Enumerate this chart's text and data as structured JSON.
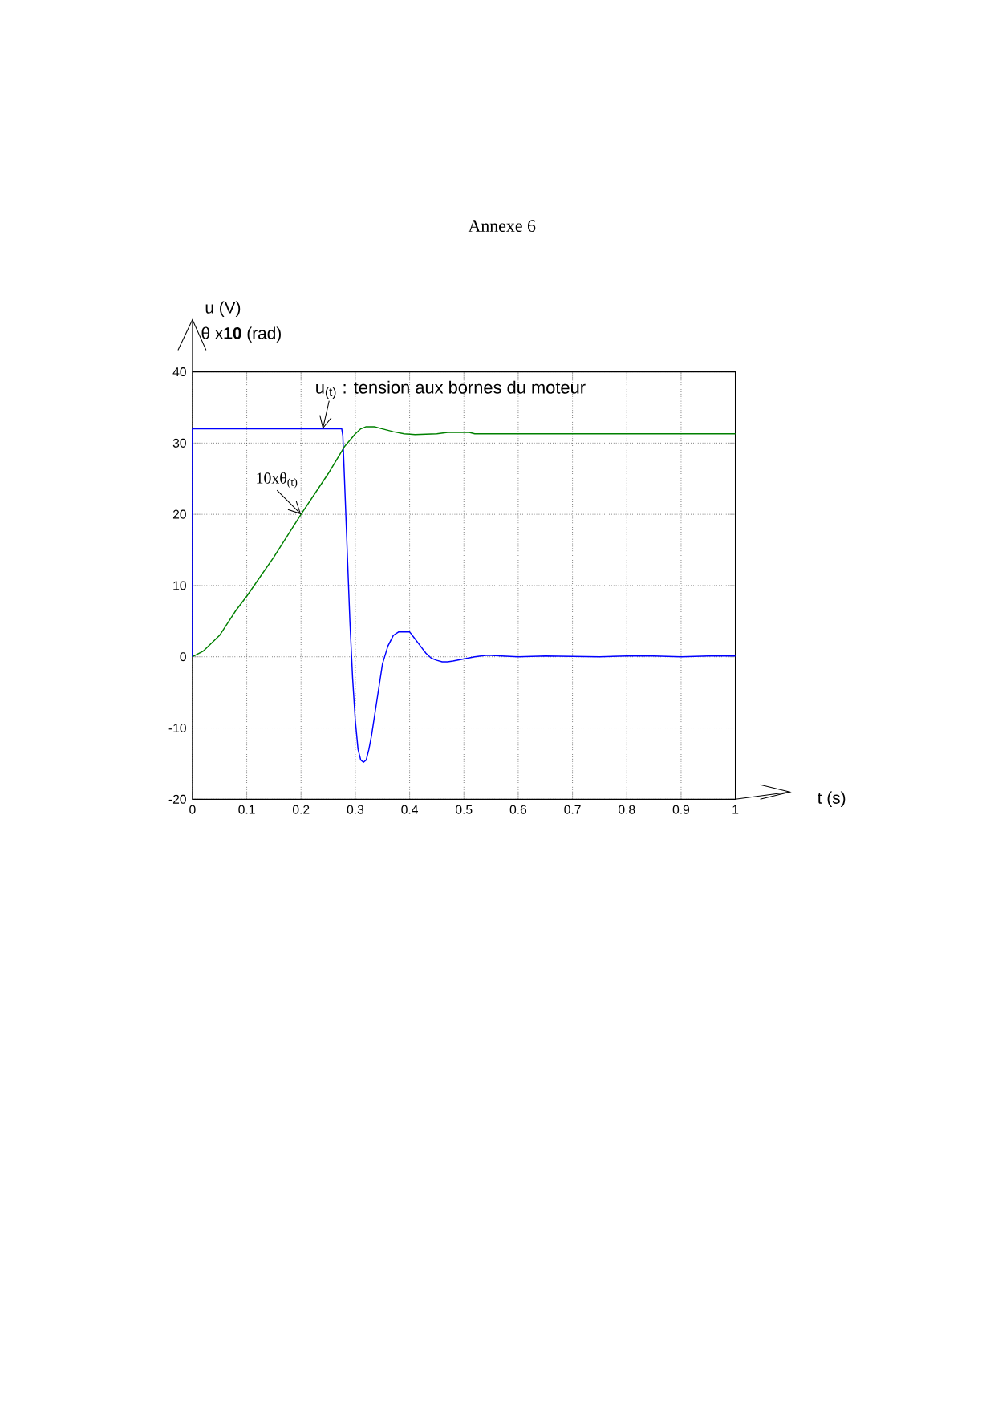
{
  "chart_data": {
    "type": "line",
    "title": "Annexe 6",
    "xlabel": "t (s)",
    "ylabel": "u (V)",
    "xlim": [
      0,
      1
    ],
    "ylim": [
      -20,
      40
    ],
    "xticks": [
      0,
      0.1,
      0.2,
      0.3,
      0.4,
      0.5,
      0.6,
      0.7,
      0.8,
      0.9,
      1
    ],
    "yticks": [
      -20,
      -10,
      0,
      10,
      20,
      30,
      40
    ],
    "grid": true,
    "marker": "none",
    "line_style": "solid",
    "series": [
      {
        "color": "#0000ff",
        "x": [
          0,
          0,
          0.275,
          0.277,
          0.28,
          0.285,
          0.29,
          0.295,
          0.3,
          0.305,
          0.31,
          0.315,
          0.32,
          0.325,
          0.33,
          0.34,
          0.35,
          0.36,
          0.37,
          0.38,
          0.39,
          0.4,
          0.41,
          0.42,
          0.43,
          0.44,
          0.45,
          0.46,
          0.47,
          0.48,
          0.5,
          0.52,
          0.54,
          0.55,
          0.57,
          0.6,
          0.65,
          0.75,
          0.8,
          0.85,
          0.9,
          0.95,
          1
        ],
        "values": [
          0,
          32,
          32,
          31,
          25,
          15,
          5,
          -3,
          -9,
          -13,
          -14.5,
          -14.8,
          -14.5,
          -13,
          -11,
          -6,
          -1,
          1.5,
          3,
          3.5,
          3.5,
          3.5,
          2.5,
          1.5,
          0.5,
          -0.2,
          -0.5,
          -0.7,
          -0.7,
          -0.6,
          -0.3,
          0,
          0.2,
          0.2,
          0.1,
          0,
          0.1,
          0,
          0.1,
          0.1,
          0,
          0.1,
          0.1
        ]
      },
      {
        "color": "#008000",
        "x": [
          0,
          0.02,
          0.05,
          0.08,
          0.1,
          0.15,
          0.2,
          0.25,
          0.28,
          0.3,
          0.31,
          0.32,
          0.335,
          0.35,
          0.37,
          0.39,
          0.41,
          0.45,
          0.47,
          0.5,
          0.51,
          0.52,
          0.6,
          0.7,
          0.8,
          0.9,
          1
        ],
        "values": [
          0,
          0.8,
          3,
          6.5,
          8.5,
          14,
          20,
          25.7,
          29.5,
          31.3,
          32,
          32.3,
          32.3,
          32,
          31.6,
          31.3,
          31.2,
          31.3,
          31.5,
          31.5,
          31.5,
          31.3,
          31.3,
          31.3,
          31.3,
          31.3,
          31.3
        ]
      }
    ],
    "annotations": [
      {
        "text": "u$_{(t)}$ : tension aux bornes du moteur",
        "x": 0.24,
        "y": 32
      },
      {
        "text": "10xθ$_{(t)}$",
        "x": 0.2,
        "y": 20
      },
      "θ x**10** (rad)"
    ]
  }
}
